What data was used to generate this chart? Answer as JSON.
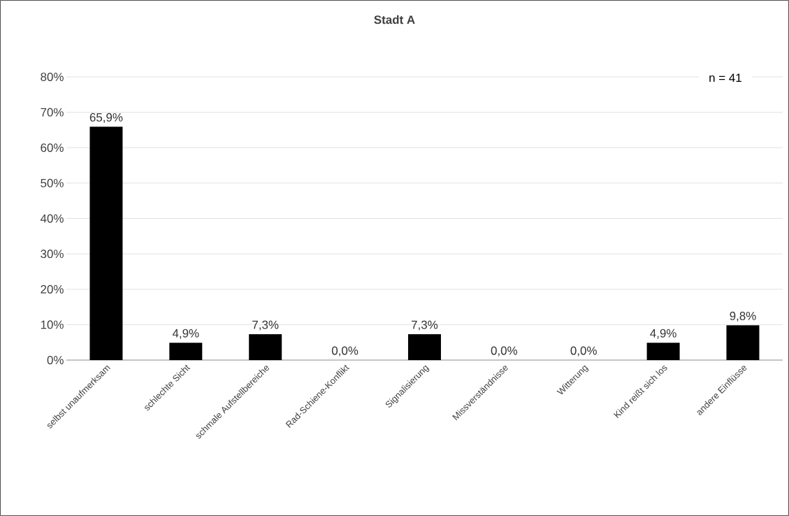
{
  "chart_data": {
    "type": "bar",
    "title": "Stadt A",
    "categories": [
      "selbst unaufmerksam",
      "schlechte Sicht",
      "schmale Aufstellbereiche",
      "Rad-Schiene-Konflikt",
      "Signalisierung",
      "Missverständnisse",
      "Witterung",
      "Kind reißt sich los",
      "andere Einflüsse"
    ],
    "values": [
      65.9,
      4.9,
      7.3,
      0.0,
      7.3,
      0.0,
      0.0,
      4.9,
      9.8
    ],
    "value_labels": [
      "65,9%",
      "4,9%",
      "7,3%",
      "0,0%",
      "7,3%",
      "0,0%",
      "0,0%",
      "4,9%",
      "9,8%"
    ],
    "color": "#000000",
    "ylim": [
      0,
      80
    ],
    "yticks": [
      {
        "value": 0,
        "label": "0%"
      },
      {
        "value": 10,
        "label": "10%"
      },
      {
        "value": 20,
        "label": "20%"
      },
      {
        "value": 30,
        "label": "30%"
      },
      {
        "value": 40,
        "label": "40%"
      },
      {
        "value": 50,
        "label": "50%"
      },
      {
        "value": 60,
        "label": "60%"
      },
      {
        "value": 70,
        "label": "70%"
      },
      {
        "value": 80,
        "label": "80%"
      }
    ],
    "grid": "y",
    "annotations": [
      "n = 41"
    ]
  }
}
